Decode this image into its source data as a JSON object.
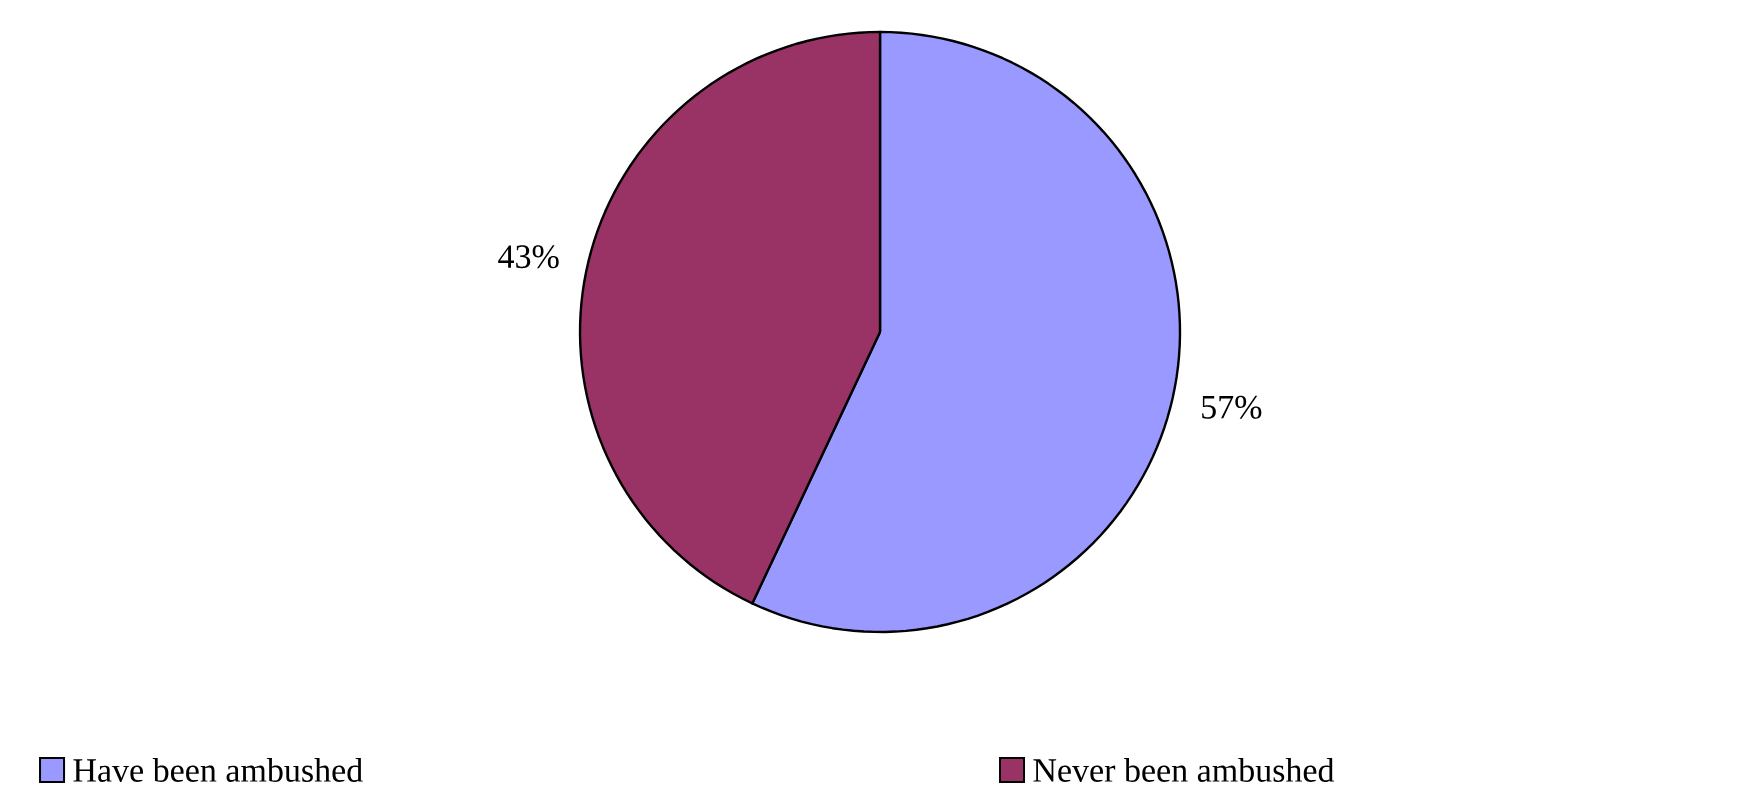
{
  "chart_data": {
    "type": "pie",
    "categories": [
      "Have been ambushed",
      "Never been ambushed"
    ],
    "values": [
      57,
      43
    ],
    "colors": [
      "#9999ff",
      "#993366"
    ],
    "value_labels": [
      "57%",
      "43%"
    ],
    "legend": "bottom"
  }
}
